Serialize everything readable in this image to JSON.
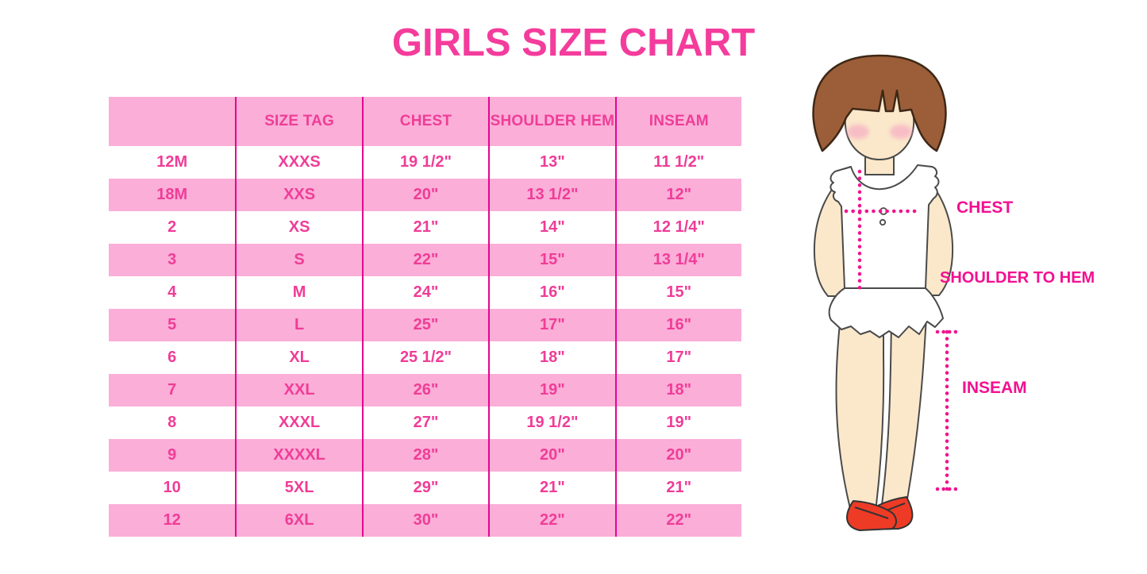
{
  "title": "GIRLS SIZE CHART",
  "chart_data": {
    "type": "table",
    "title": "GIRLS SIZE CHART",
    "columns": [
      "",
      "SIZE TAG",
      "CHEST",
      "SHOULDER HEM",
      "INSEAM"
    ],
    "rows": [
      [
        "12M",
        "XXXS",
        "19 1/2\"",
        "13\"",
        "11 1/2\""
      ],
      [
        "18M",
        "XXS",
        "20\"",
        "13 1/2\"",
        "12\""
      ],
      [
        "2",
        "XS",
        "21\"",
        "14\"",
        "12 1/4\""
      ],
      [
        "3",
        "S",
        "22\"",
        "15\"",
        "13 1/4\""
      ],
      [
        "4",
        "M",
        "24\"",
        "16\"",
        "15\""
      ],
      [
        "5",
        "L",
        "25\"",
        "17\"",
        "16\""
      ],
      [
        "6",
        "XL",
        "25 1/2\"",
        "18\"",
        "17\""
      ],
      [
        "7",
        "XXL",
        "26\"",
        "19\"",
        "18\""
      ],
      [
        "8",
        "XXXL",
        "27\"",
        "19 1/2\"",
        "19\""
      ],
      [
        "9",
        "XXXXL",
        "28\"",
        "20\"",
        "20\""
      ],
      [
        "10",
        "5XL",
        "29\"",
        "21\"",
        "21\""
      ],
      [
        "12",
        "6XL",
        "30\"",
        "22\"",
        "22\""
      ]
    ],
    "layout": {
      "header_background": "#FBAED8",
      "alternating_rows": [
        "#FFFFFF",
        "#FBAED8"
      ],
      "column_separator": "#E5048E"
    }
  },
  "figure_labels": {
    "chest": "CHEST",
    "shoulder_to_hem": "SHOULDER TO HEM",
    "inseam": "INSEAM"
  },
  "colors": {
    "accent_pink": "#F43C9C",
    "row_pink": "#FBAED8",
    "line_magenta": "#E5048E",
    "table_text_pink": "#EF3D97",
    "label_pink": "#F31091",
    "dot_pink": "#F2128E",
    "hair_brown": "#9C5E38",
    "skin": "#FBE8CB",
    "blush": "#F6AFC4",
    "shoe_red": "#EE3B25",
    "garment_white": "#FFFFFF"
  }
}
